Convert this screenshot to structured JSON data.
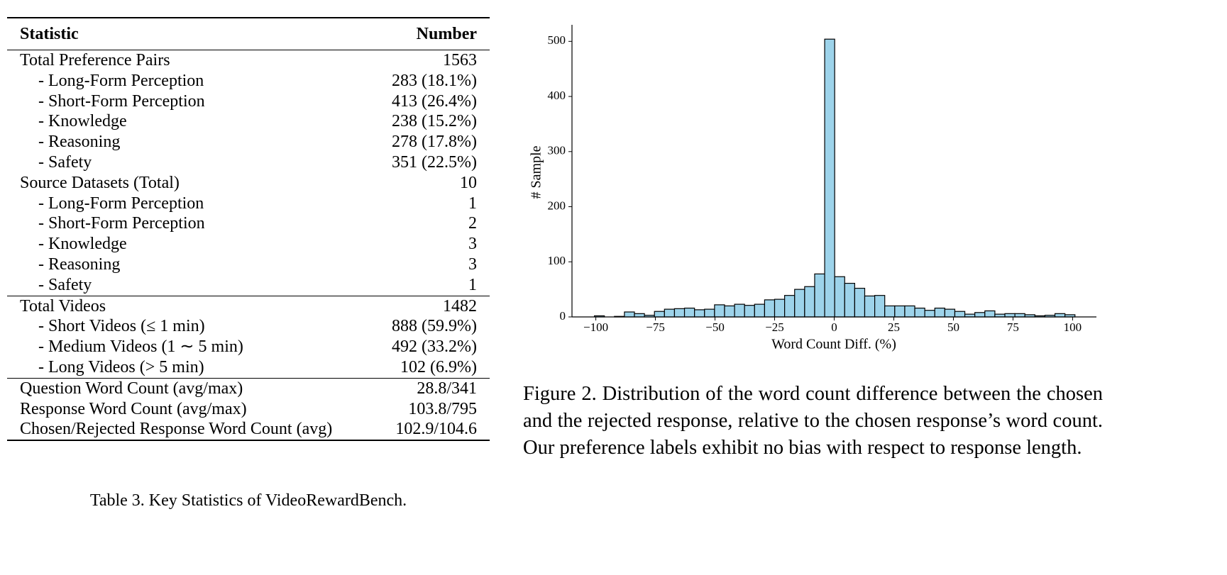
{
  "table": {
    "header": [
      "Statistic",
      "Number"
    ],
    "sections": [
      [
        [
          "Total Preference Pairs",
          "1563"
        ],
        [
          "- Long-Form Perception",
          "283 (18.1%)"
        ],
        [
          "- Short-Form Perception",
          "413 (26.4%)"
        ],
        [
          "- Knowledge",
          "238 (15.2%)"
        ],
        [
          "- Reasoning",
          "278 (17.8%)"
        ],
        [
          "- Safety",
          "351 (22.5%)"
        ],
        [
          "Source Datasets (Total)",
          "10"
        ],
        [
          "- Long-Form Perception",
          "1"
        ],
        [
          "- Short-Form Perception",
          "2"
        ],
        [
          "- Knowledge",
          "3"
        ],
        [
          "- Reasoning",
          "3"
        ],
        [
          "- Safety",
          "1"
        ]
      ],
      [
        [
          "Total Videos",
          "1482"
        ],
        [
          "- Short Videos (≤ 1 min)",
          "888 (59.9%)"
        ],
        [
          "- Medium Videos (1 ∼ 5 min)",
          "492 (33.2%)"
        ],
        [
          "- Long Videos (> 5 min)",
          "102 (6.9%)"
        ]
      ],
      [
        [
          "Question Word Count (avg/max)",
          "28.8/341"
        ],
        [
          "Response Word Count (avg/max)",
          "103.8/795"
        ],
        [
          "Chosen/Rejected Response Word Count (avg)",
          "102.9/104.6"
        ]
      ]
    ],
    "caption": "Table 3. Key Statistics of VideoRewardBench."
  },
  "chart_data": {
    "type": "histogram",
    "xlabel": "Word Count Diff. (%)",
    "ylabel": "# Sample",
    "bins": [
      -100.6,
      -96.4,
      -92.2,
      -88,
      -83.8,
      -79.6,
      -75.4,
      -71.2,
      -67,
      -62.8,
      -58.6,
      -54.4,
      -50.2,
      -46,
      -41.8,
      -37.6,
      -33.4,
      -29.2,
      -25,
      -20.8,
      -16.6,
      -12.4,
      -8.2,
      -4,
      0.2,
      4.4,
      8.6,
      12.8,
      17,
      21.2,
      25.4,
      29.6,
      33.8,
      38,
      42.2,
      46.4,
      50.6,
      54.8,
      59,
      63.2,
      67.4,
      71.6,
      75.8,
      80,
      84.2,
      88.4,
      92.6,
      96.8,
      101
    ],
    "values": [
      2,
      0,
      1,
      9,
      6,
      3,
      10,
      14,
      15,
      16,
      13,
      14,
      22,
      20,
      23,
      21,
      23,
      31,
      32,
      39,
      50,
      55,
      78,
      504,
      73,
      61,
      52,
      38,
      39,
      20,
      20,
      20,
      16,
      12,
      16,
      14,
      10,
      5,
      8,
      11,
      5,
      6,
      6,
      4,
      2,
      3,
      6,
      4
    ],
    "color": "#9dd3ea",
    "xlim": [
      -110,
      110
    ],
    "ylim": [
      0,
      530
    ],
    "xticks": [
      {
        "value": -100,
        "label": "−100"
      },
      {
        "value": -75,
        "label": "−75"
      },
      {
        "value": -50,
        "label": "−50"
      },
      {
        "value": -25,
        "label": "−25"
      },
      0,
      25,
      50,
      75,
      100
    ],
    "yticks": [
      0,
      100,
      200,
      300,
      400,
      500
    ]
  },
  "figure_caption": "Figure 2. Distribution of the word count difference between the chosen and the rejected response, relative to the chosen response’s word count. Our preference labels exhibit no bias with respect to response length."
}
